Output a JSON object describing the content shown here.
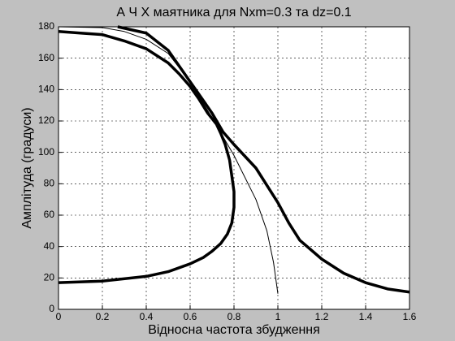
{
  "chart_data": {
    "type": "line",
    "title": "А Ч Х   маятника  для   Nxm=0.3  та  dz=0.1",
    "xlabel": "Відносна частота збудження",
    "ylabel": "Амплітуда  (градуси)",
    "xlim": [
      0,
      1.6
    ],
    "xticks": [
      0,
      0.2,
      0.4,
      0.6,
      0.8,
      1,
      1.2,
      1.4,
      1.6
    ],
    "ylim": [
      0,
      180
    ],
    "yticks": [
      0,
      20,
      40,
      60,
      80,
      100,
      120,
      140,
      160,
      180
    ],
    "grid": true,
    "series": [
      {
        "color": "#000000",
        "width": 3.5,
        "x": [
          0,
          0.2,
          0.4,
          0.5,
          0.6,
          0.66,
          0.7,
          0.74,
          0.77,
          0.79,
          0.8,
          0.8,
          0.79,
          0.78,
          0.76,
          0.74,
          0.72,
          0.68,
          0.64,
          0.6,
          0.55,
          0.5,
          0.4,
          0.3,
          0.2,
          0.1,
          0
        ],
        "values": [
          17,
          18,
          21,
          24,
          29,
          33,
          37,
          42,
          48,
          55,
          65,
          75,
          85,
          95,
          105,
          112,
          118,
          125,
          134,
          142,
          150,
          157,
          166,
          171,
          175,
          176,
          177
        ]
      },
      {
        "color": "#000000",
        "width": 3.5,
        "x": [
          0.27,
          0.4,
          0.5,
          0.6,
          0.7,
          0.75,
          0.8,
          0.9,
          1,
          1.05,
          1.1,
          1.2,
          1.3,
          1.4,
          1.5,
          1.6
        ],
        "values": [
          180,
          176,
          165,
          145,
          125,
          113,
          105,
          90,
          68,
          55,
          44,
          32,
          23,
          17,
          13,
          11
        ]
      },
      {
        "color": "#000000",
        "width": 1,
        "x": [
          0,
          0.2,
          0.3,
          0.4,
          0.5,
          0.6,
          0.7,
          0.8,
          0.9,
          0.95,
          0.98,
          1
        ],
        "values": [
          180,
          179.5,
          177,
          172,
          163,
          145,
          122,
          98,
          70,
          50,
          30,
          10
        ]
      }
    ]
  }
}
